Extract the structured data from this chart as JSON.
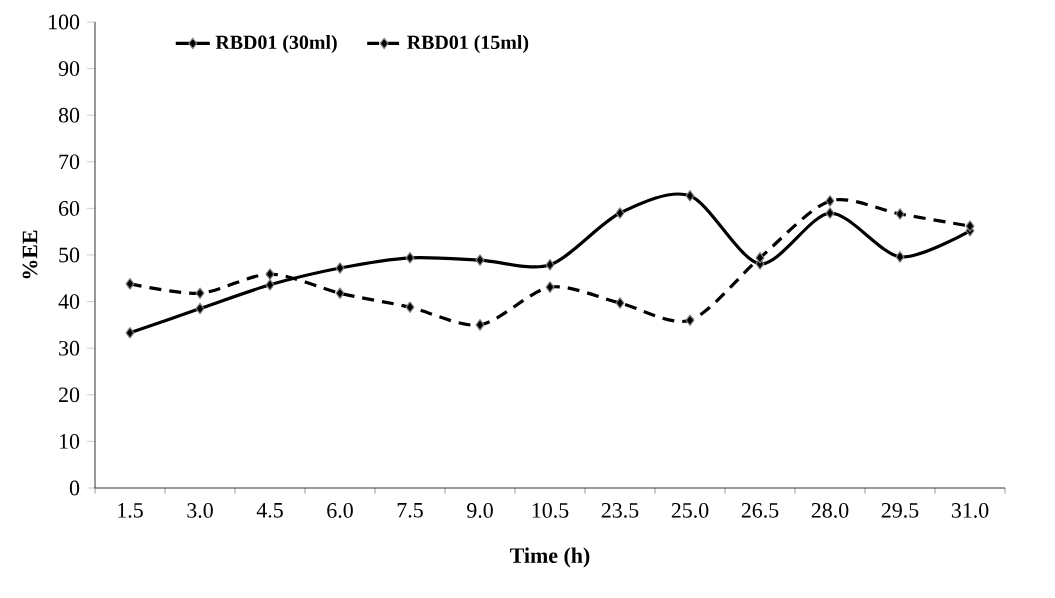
{
  "chart_data": {
    "type": "line",
    "xlabel": "Time (h)",
    "ylabel": "%EE",
    "categories": [
      "1.5",
      "3.0",
      "4.5",
      "6.0",
      "7.5",
      "9.0",
      "10.5",
      "23.5",
      "25.0",
      "26.5",
      "28.0",
      "29.5",
      "31.0"
    ],
    "series": [
      {
        "name": "RBD01 (30ml)",
        "color": "#000000",
        "line_style": "solid",
        "values": [
          33.3,
          38.5,
          43.6,
          47.2,
          49.4,
          48.9,
          47.9,
          59.0,
          62.7,
          48.1,
          59.0,
          49.6,
          55.2
        ]
      },
      {
        "name": "RBD01 (15ml)",
        "color": "#000000",
        "line_style": "dashed",
        "values": [
          43.8,
          41.8,
          45.9,
          41.8,
          38.8,
          35.0,
          43.1,
          39.7,
          36.0,
          49.4,
          61.6,
          58.8,
          56.2
        ]
      }
    ],
    "ylim": [
      0,
      100
    ],
    "yticks": [
      0,
      10,
      20,
      30,
      40,
      50,
      60,
      70,
      80,
      90,
      100
    ],
    "marker": "diamond",
    "legend": "top left",
    "grid": false
  }
}
